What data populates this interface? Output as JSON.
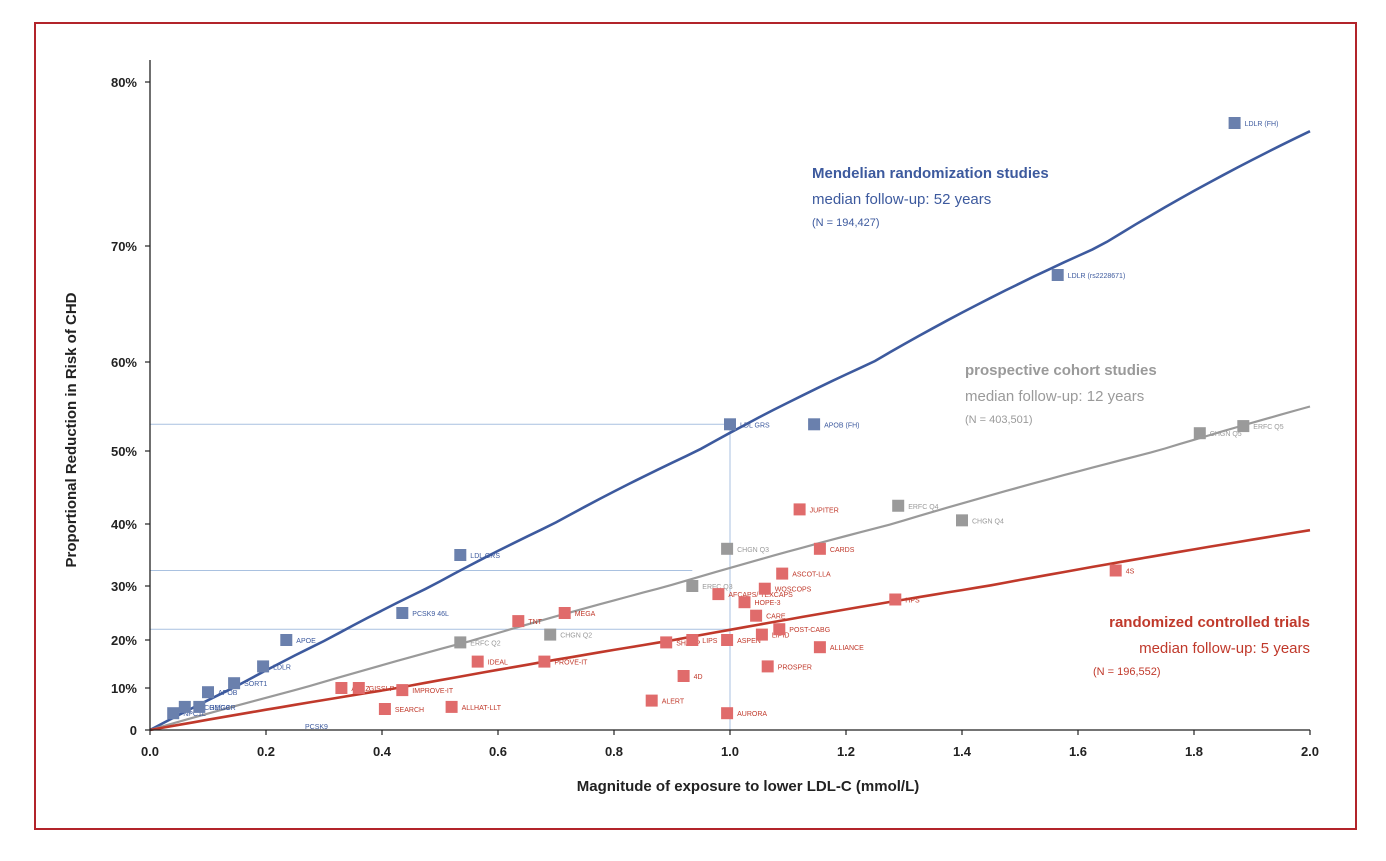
{
  "chart_data": {
    "type": "scatter",
    "xlabel": "Magnitude of exposure to lower LDL-C (mmol/L)",
    "ylabel": "Proportional Reduction in Risk of CHD",
    "x_ticks": [
      "0.0",
      "0.2",
      "0.4",
      "0.6",
      "0.8",
      "1.0",
      "1.2",
      "1.4",
      "1.6",
      "1.8",
      "2.0"
    ],
    "y_ticks": [
      "0",
      "10%",
      "20%",
      "30%",
      "40%",
      "50%",
      "60%",
      "70%",
      "80%"
    ],
    "xlim": [
      0,
      2.0
    ],
    "ylim": [
      0,
      0.8
    ],
    "y_scale": "1 - exp(-k*x) (log relative risk)",
    "grid": false,
    "colors": {
      "mendelian": "#3d5a9e",
      "mendelian_marker": "#6a80ad",
      "cohort": "#9a9a9a",
      "cohort_marker": "#9a9a9a",
      "rct": "#c0392b",
      "rct_marker": "#e06b6b",
      "frame": "#b2242a"
    },
    "series": [
      {
        "key": "mendelian",
        "name": "Mendelian randomization studies",
        "subtitle": "median follow-up: 52 years",
        "n_label": "(N = 194,427)",
        "fit_reduction_at_2": 0.77,
        "points": [
          {
            "label": "NPC1L",
            "x": 0.04,
            "y": 0.04
          },
          {
            "label": "ABCG5/G8",
            "x": 0.06,
            "y": 0.055
          },
          {
            "label": "HMGCR",
            "x": 0.085,
            "y": 0.055
          },
          {
            "label": "APOB",
            "x": 0.1,
            "y": 0.09
          },
          {
            "label": "SORT1",
            "x": 0.145,
            "y": 0.11
          },
          {
            "label": "LDLR",
            "x": 0.195,
            "y": 0.145
          },
          {
            "label": "APOE",
            "x": 0.235,
            "y": 0.2
          },
          {
            "label": "PCSK9 46L",
            "x": 0.435,
            "y": 0.25
          },
          {
            "label": "LDL GRS",
            "x": 0.535,
            "y": 0.35
          },
          {
            "label": "LDL GRS",
            "x": 1.0,
            "y": 0.53
          },
          {
            "label": "APOB (FH)",
            "x": 1.145,
            "y": 0.53
          },
          {
            "label": "LDLR (rs2228671)",
            "x": 1.565,
            "y": 0.675
          },
          {
            "label": "LDLR (FH)",
            "x": 1.87,
            "y": 0.775
          }
        ],
        "unmarked_labels": [
          {
            "label": "PCSK9",
            "x": 0.25,
            "y": 0.01
          }
        ]
      },
      {
        "key": "cohort",
        "name": "prospective cohort studies",
        "subtitle": "median follow-up: 12 years",
        "n_label": "(N = 403,501)",
        "fit_reduction_at_2": 0.55,
        "points": [
          {
            "label": "ERFC Q2",
            "x": 0.535,
            "y": 0.195
          },
          {
            "label": "CHGN Q2",
            "x": 0.69,
            "y": 0.21
          },
          {
            "label": "ERFC Q3",
            "x": 0.935,
            "y": 0.3
          },
          {
            "label": "CHGN Q3",
            "x": 0.995,
            "y": 0.36
          },
          {
            "label": "ERFC Q4",
            "x": 1.29,
            "y": 0.425
          },
          {
            "label": "CHGN Q4",
            "x": 1.4,
            "y": 0.405
          },
          {
            "label": "CHGN Q5",
            "x": 1.81,
            "y": 0.52
          },
          {
            "label": "ERFC Q5",
            "x": 1.885,
            "y": 0.528
          }
        ]
      },
      {
        "key": "rct",
        "name": "randomized controlled trials",
        "subtitle": "median follow-up: 5 years",
        "n_label": "(N = 196,552)",
        "fit_reduction_at_2": 0.39,
        "points": [
          {
            "label": "A to Z",
            "x": 0.33,
            "y": 0.1
          },
          {
            "label": "GISSI-P",
            "x": 0.36,
            "y": 0.1
          },
          {
            "label": "SEARCH",
            "x": 0.405,
            "y": 0.05
          },
          {
            "label": "IMPROVE-IT",
            "x": 0.435,
            "y": 0.095
          },
          {
            "label": "ALLHAT-LLT",
            "x": 0.52,
            "y": 0.055
          },
          {
            "label": "IDEAL",
            "x": 0.565,
            "y": 0.155
          },
          {
            "label": "TNT",
            "x": 0.635,
            "y": 0.235
          },
          {
            "label": "PROVE-IT",
            "x": 0.68,
            "y": 0.155
          },
          {
            "label": "MEGA",
            "x": 0.715,
            "y": 0.25
          },
          {
            "label": "ALERT",
            "x": 0.865,
            "y": 0.07
          },
          {
            "label": "SHARP",
            "x": 0.89,
            "y": 0.195
          },
          {
            "label": "4D",
            "x": 0.92,
            "y": 0.125
          },
          {
            "label": "LIPS",
            "x": 0.935,
            "y": 0.2
          },
          {
            "label": "AFCAPS/ TEXCAPS",
            "x": 0.98,
            "y": 0.285
          },
          {
            "label": "ASPEN",
            "x": 0.995,
            "y": 0.2
          },
          {
            "label": "AURORA",
            "x": 0.995,
            "y": 0.04
          },
          {
            "label": "HOPE-3",
            "x": 1.025,
            "y": 0.27
          },
          {
            "label": "CARE",
            "x": 1.045,
            "y": 0.245
          },
          {
            "label": "LIPID",
            "x": 1.055,
            "y": 0.21
          },
          {
            "label": "WOSCOPS",
            "x": 1.06,
            "y": 0.295
          },
          {
            "label": "PROSPER",
            "x": 1.065,
            "y": 0.145
          },
          {
            "label": "POST-CABG",
            "x": 1.085,
            "y": 0.22
          },
          {
            "label": "ASCOT-LLA",
            "x": 1.09,
            "y": 0.32
          },
          {
            "label": "JUPITER",
            "x": 1.12,
            "y": 0.42
          },
          {
            "label": "CARDS",
            "x": 1.155,
            "y": 0.36
          },
          {
            "label": "ALLIANCE",
            "x": 1.155,
            "y": 0.185
          },
          {
            "label": "HPS",
            "x": 1.285,
            "y": 0.275
          },
          {
            "label": "4S",
            "x": 1.665,
            "y": 0.325
          }
        ]
      }
    ],
    "reference_lines": [
      {
        "x": 1.0,
        "y": 0.53,
        "line_x_from": 0,
        "drop_to_axis": true
      },
      {
        "x": 0.935,
        "y": 0.325,
        "line_x_from": 0,
        "drop_to_axis": false
      },
      {
        "x": 1.0,
        "y": 0.22,
        "line_x_from": 0,
        "drop_to_axis": false
      }
    ]
  }
}
